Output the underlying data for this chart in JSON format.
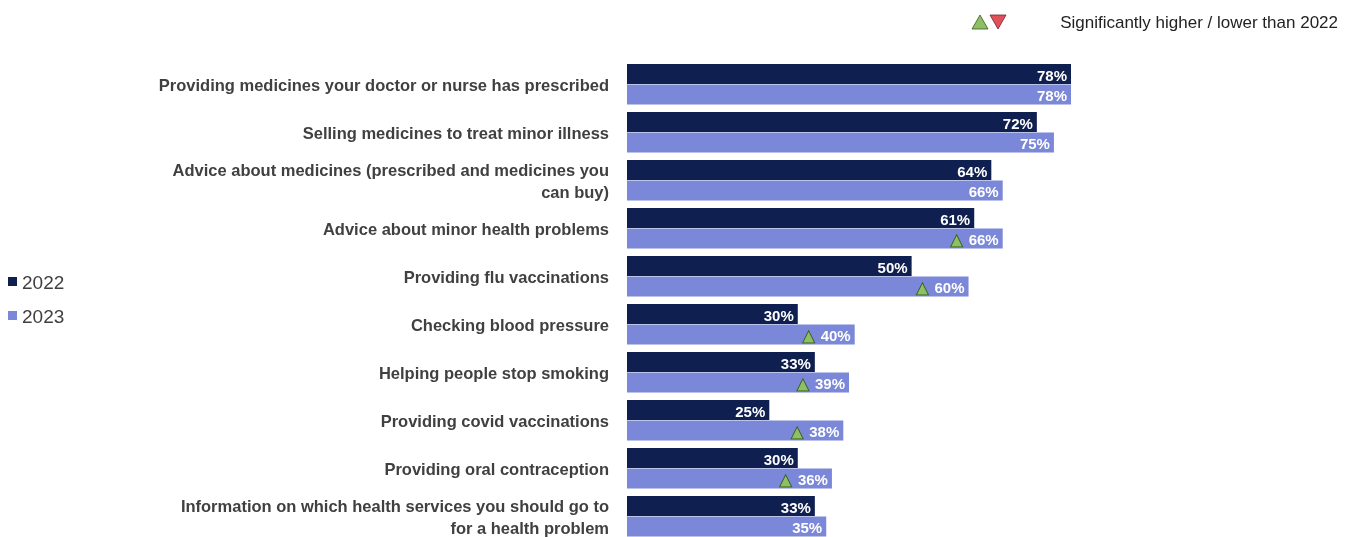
{
  "chart_data": {
    "type": "bar",
    "orientation": "horizontal",
    "categories": [
      "Providing medicines your doctor or nurse has prescribed",
      "Selling medicines to treat minor illness",
      "Advice about medicines (prescribed and medicines you can buy)",
      "Advice about minor health problems",
      "Providing flu vaccinations",
      "Checking blood pressure",
      "Helping people stop smoking",
      "Providing covid vaccinations",
      "Providing oral contraception",
      "Information on which health services you should go to for a health problem"
    ],
    "series": [
      {
        "name": "2022",
        "color": "#0f1f50",
        "values": [
          78,
          72,
          64,
          61,
          50,
          30,
          33,
          25,
          30,
          33
        ],
        "value_labels": [
          "78%",
          "72%",
          "64%",
          "61%",
          "50%",
          "30%",
          "33%",
          "25%",
          "30%",
          "33%"
        ]
      },
      {
        "name": "2023",
        "color": "#7b87d8",
        "values": [
          78,
          75,
          66,
          66,
          60,
          40,
          39,
          38,
          36,
          35
        ],
        "value_labels": [
          "78%",
          "75%",
          "66%",
          "66%",
          "60%",
          "40%",
          "39%",
          "38%",
          "36%",
          "35%"
        ]
      }
    ],
    "legend": "left",
    "annotations": [
      "Significantly higher / lower than 2022",
      {
        "text": "▲",
        "x": 66,
        "y": "Advice about minor health problems"
      },
      {
        "text": "▲",
        "x": 60,
        "y": "Providing flu vaccinations"
      },
      {
        "text": "▲",
        "x": 40,
        "y": "Checking blood pressure"
      },
      {
        "text": "▲",
        "x": 39,
        "y": "Helping people stop smoking"
      },
      {
        "text": "▲",
        "x": 38,
        "y": "Providing covid vaccinations"
      },
      {
        "text": "▲",
        "x": 36,
        "y": "Providing oral contraception"
      }
    ]
  }
}
